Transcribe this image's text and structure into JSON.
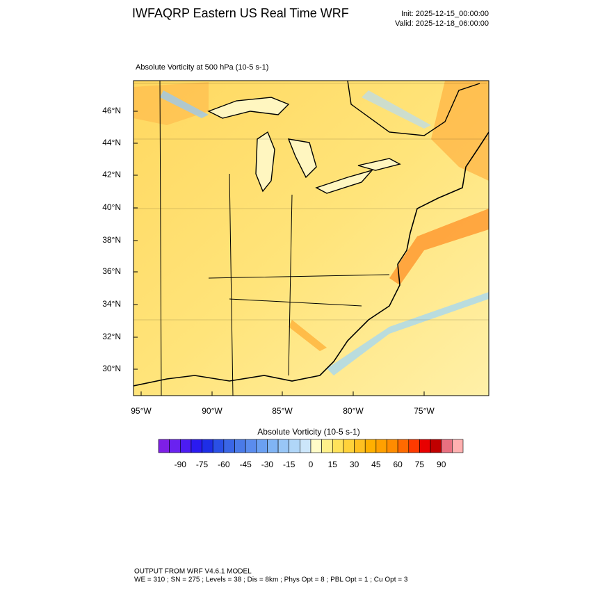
{
  "header": {
    "title": "IWFAQRP Eastern US Real Time WRF",
    "init": "Init: 2025-12-15_00:00:00",
    "valid": "Valid: 2025-12-18_06:00:00"
  },
  "map": {
    "subtitle": "Absolute Vorticity at 500 hPa   (10-5 s-1)",
    "lat_labels": [
      "46°N",
      "44°N",
      "42°N",
      "40°N",
      "38°N",
      "36°N",
      "34°N",
      "32°N",
      "30°N"
    ],
    "lon_labels": [
      "95°W",
      "90°W",
      "85°W",
      "80°W",
      "75°W"
    ]
  },
  "colorbar": {
    "title": "Absolute Vorticity  (10-5 s-1)",
    "ticks": [
      -90,
      -75,
      -60,
      -45,
      -30,
      -15,
      0,
      15,
      30,
      45,
      60,
      75,
      90
    ],
    "colors": [
      "#7e1fe6",
      "#6a22f0",
      "#4c1cf2",
      "#2a1af0",
      "#1e2ee6",
      "#2a50e6",
      "#3a66e6",
      "#4a7ae8",
      "#5a8cee",
      "#6aa0f2",
      "#80b4f4",
      "#98c6f6",
      "#b0d6f8",
      "#cce6fa",
      "#fffbc8",
      "#fff08a",
      "#ffe25a",
      "#ffd23a",
      "#ffc020",
      "#ffb000",
      "#ffa000",
      "#ff8c00",
      "#ff6a00",
      "#ff3a00",
      "#e80000",
      "#c00000",
      "#e87080",
      "#ffb0b0"
    ]
  },
  "footer": {
    "line1": "OUTPUT FROM WRF V4.6.1 MODEL",
    "line2": "WE = 310 ; SN = 275 ; Levels = 38 ; Dis = 8km ; Phys Opt = 8 ; PBL Opt = 1 ; Cu Opt = 3"
  }
}
